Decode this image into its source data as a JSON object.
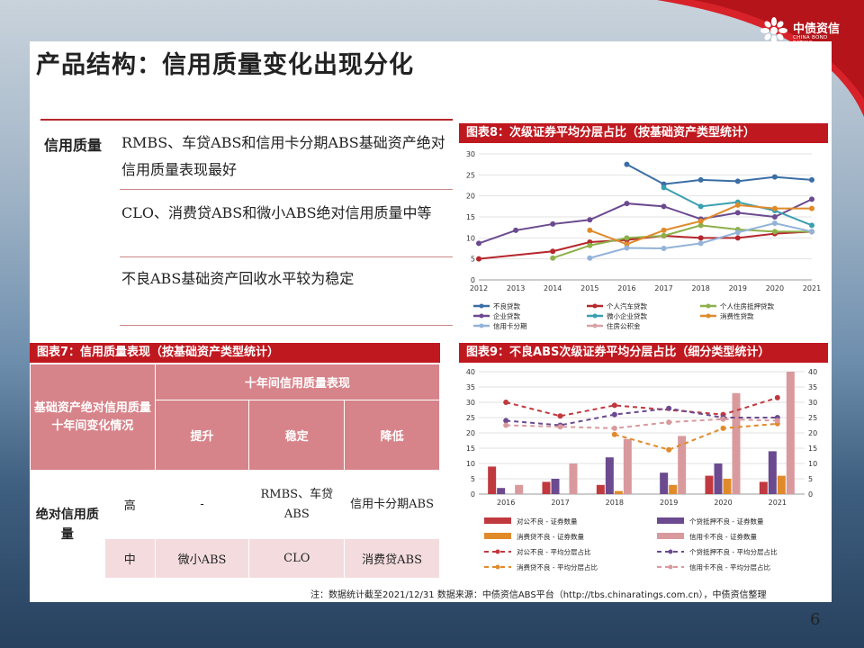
{
  "brand": {
    "name_cn": "中债资信",
    "name_en": "CHINA BOND RATING",
    "logo_color": "#c0181f"
  },
  "title": "产品结构：信用质量变化出现分化",
  "left": {
    "label": "信用质量",
    "items": [
      "RMBS、车贷ABS和信用卡分期ABS基础资产绝对信用质量表现最好",
      "CLO、消费贷ABS和微小ABS绝对信用质量中等",
      "不良ABS基础资产回收水平较为稳定"
    ]
  },
  "table": {
    "title": "图表7：信用质量表现（按基础资产类型统计）",
    "row_header": "基础资产绝对信用质量十年间变化情况",
    "col_group": "十年间信用质量表现",
    "cols": [
      "提升",
      "稳定",
      "降低"
    ],
    "side_label": "绝对信用质量",
    "rows": [
      {
        "level": "高",
        "cells": [
          "-",
          "RMBS、车贷ABS",
          "信用卡分期ABS"
        ]
      },
      {
        "level": "中",
        "cells": [
          "微小ABS",
          "CLO",
          "消费贷ABS"
        ]
      }
    ]
  },
  "chart8": {
    "title": "图表8：次级证券平均分层占比（按基础资产类型统计）",
    "chart_data": {
      "type": "line",
      "categories": [
        "2012",
        "2013",
        "2014",
        "2015",
        "2016",
        "2017",
        "2018",
        "2019",
        "2020",
        "2021"
      ],
      "ylim": [
        0,
        30
      ],
      "yticks": [
        0,
        5,
        10,
        15,
        20,
        25,
        30
      ],
      "series": [
        {
          "name": "不良贷款",
          "color": "#3a6ea5",
          "values": [
            null,
            null,
            null,
            null,
            27.5,
            22.8,
            23.8,
            23.5,
            24.5,
            23.8
          ]
        },
        {
          "name": "个人汽车贷款",
          "color": "#b5272d",
          "values": [
            5,
            null,
            6.8,
            9,
            9.5,
            10.5,
            10,
            10,
            11,
            11.5
          ]
        },
        {
          "name": "个人住房抵押贷款",
          "color": "#8db04a",
          "values": [
            null,
            null,
            5.2,
            8.2,
            10,
            10.5,
            13,
            12,
            11.5,
            11.5
          ]
        },
        {
          "name": "企业贷款",
          "color": "#6b4a8f",
          "values": [
            8.7,
            11.8,
            13.3,
            14.3,
            18.2,
            17.5,
            14.5,
            16,
            15,
            19.2
          ]
        },
        {
          "name": "微小企业贷款",
          "color": "#3aa0b0",
          "values": [
            null,
            null,
            null,
            null,
            null,
            22,
            17.5,
            18.5,
            16.5,
            13
          ]
        },
        {
          "name": "消费性贷款",
          "color": "#e08a2a",
          "values": [
            null,
            null,
            null,
            11.8,
            8.5,
            11.8,
            14,
            17.8,
            17,
            17
          ]
        },
        {
          "name": "信用卡分期",
          "color": "#93b3d8",
          "values": [
            null,
            null,
            null,
            5.2,
            7.6,
            7.5,
            8.7,
            11.3,
            13.5,
            11.5
          ]
        },
        {
          "name": "住房公积金",
          "color": "#d7a3a8",
          "values": [
            null,
            null,
            null,
            null,
            null,
            null,
            null,
            null,
            null,
            null
          ]
        }
      ]
    }
  },
  "chart9": {
    "title": "图表9：不良ABS次级证券平均分层占比（细分类型统计）",
    "chart_data": {
      "type": "bar",
      "categories": [
        "2016",
        "2017",
        "2018",
        "2019",
        "2020",
        "2021"
      ],
      "ylim": [
        0,
        40
      ],
      "yticks": [
        0,
        5,
        10,
        15,
        20,
        25,
        30,
        35,
        40
      ],
      "bars": [
        {
          "name": "对公不良 - 证券数量",
          "color": "#c0393f",
          "values": [
            9,
            4,
            3,
            0,
            6,
            4
          ]
        },
        {
          "name": "个贷抵押不良 - 证券数量",
          "color": "#6b4a8f",
          "values": [
            2,
            5,
            12,
            7,
            10,
            14
          ]
        },
        {
          "name": "消费贷不良 - 证券数量",
          "color": "#e08a2a",
          "values": [
            0,
            0,
            1,
            3,
            5,
            6
          ]
        },
        {
          "name": "信用卡不良 - 证券数量",
          "color": "#d99a9e",
          "values": [
            3,
            10,
            18,
            19,
            33,
            40
          ]
        }
      ],
      "lines": [
        {
          "name": "对公不良 - 平均分层占比",
          "color": "#c0393f",
          "values": [
            30,
            25.5,
            29,
            null,
            26,
            31.5
          ]
        },
        {
          "name": "个贷抵押不良 - 平均分层占比",
          "color": "#6b4a8f",
          "values": [
            24,
            22.5,
            26,
            28,
            25,
            25
          ]
        },
        {
          "name": "消费贷不良 - 平均分层占比",
          "color": "#e08a2a",
          "values": [
            null,
            null,
            19.5,
            14.5,
            21.5,
            23
          ]
        },
        {
          "name": "信用卡不良 - 平均分层占比",
          "color": "#d99a9e",
          "values": [
            22.5,
            22,
            21.5,
            23.5,
            24.5,
            24
          ]
        }
      ]
    }
  },
  "note": "注：数据统计截至2021/12/31    数据来源：中债资信ABS平台（http://tbs.chinaratings.com.cn），中债资信整理",
  "page_number": "6"
}
